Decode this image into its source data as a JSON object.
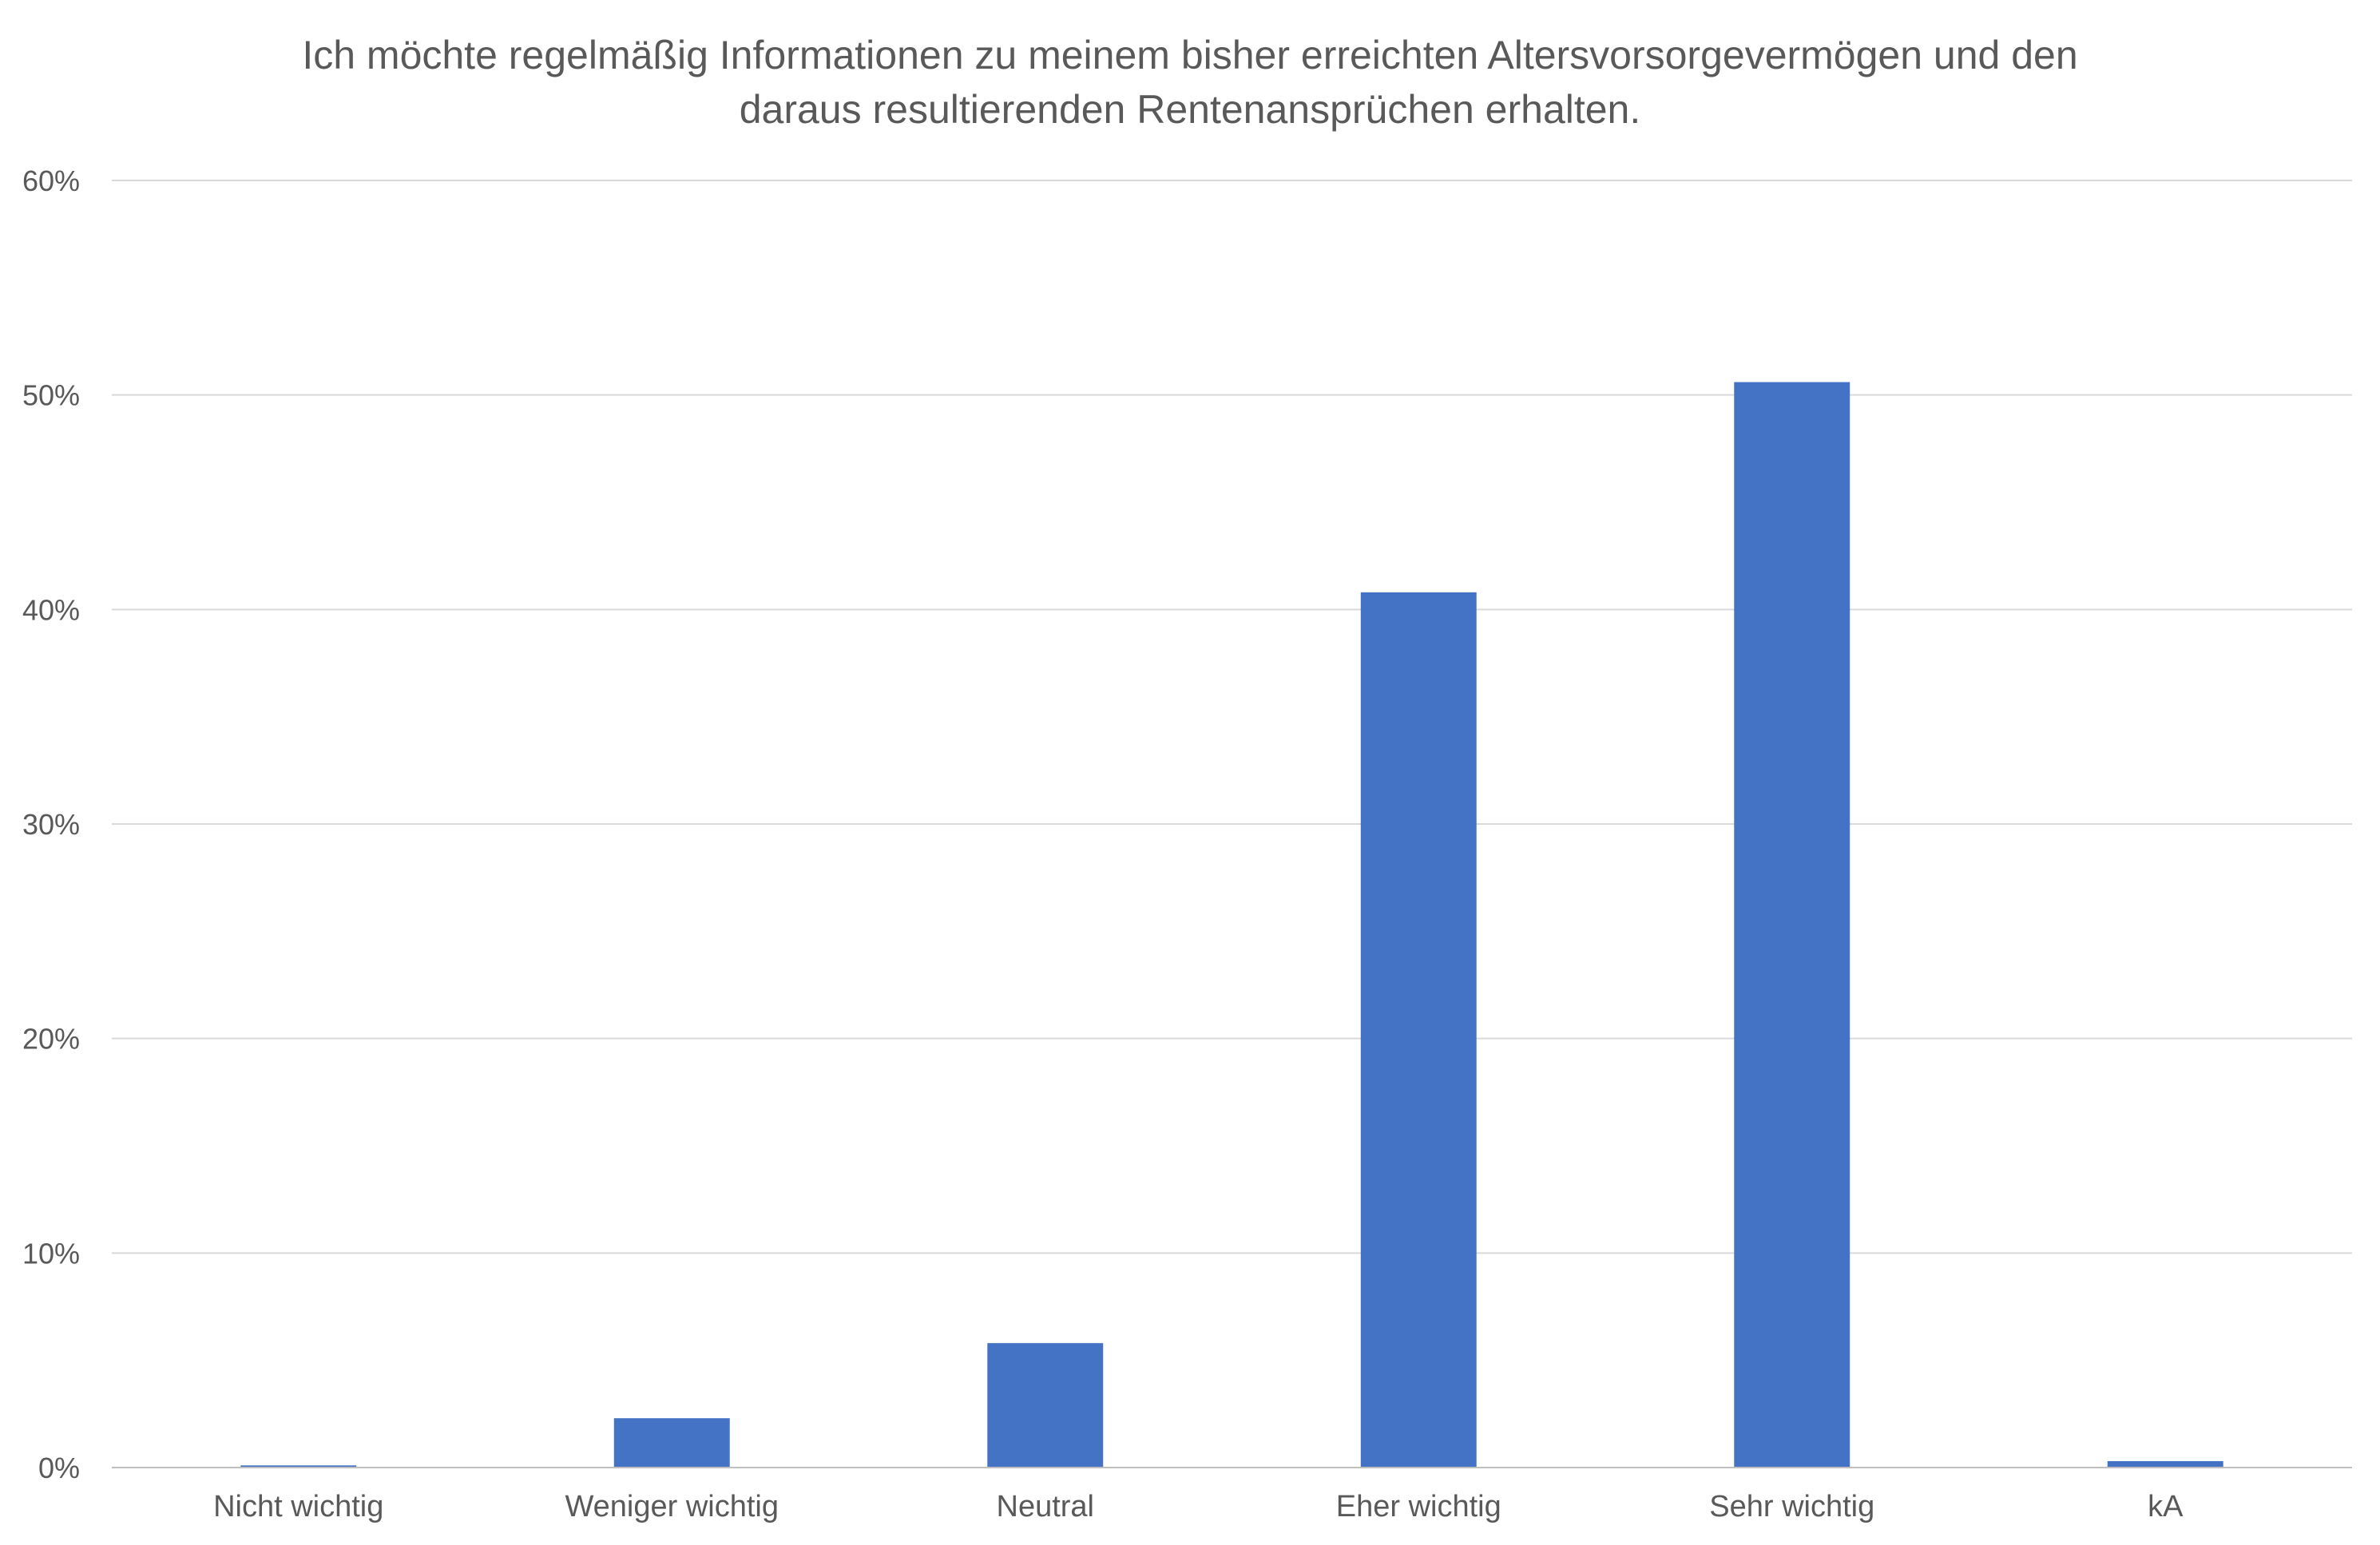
{
  "chart_data": {
    "type": "bar",
    "title_lines": [
      "Ich möchte regelmäßig Informationen zu meinem bisher erreichten Altersvorsorgevermögen und den",
      "daraus resultierenden Rentenansprüchen erhalten."
    ],
    "categories": [
      "Nicht wichtig",
      "Weniger wichtig",
      "Neutral",
      "Eher wichtig",
      "Sehr wichtig",
      "kA"
    ],
    "values": [
      0.1,
      2.3,
      5.8,
      40.8,
      50.6,
      0.3
    ],
    "ylim": [
      0,
      60
    ],
    "yticks": [
      0,
      10,
      20,
      30,
      40,
      50,
      60
    ],
    "ytick_labels": [
      "0%",
      "10%",
      "20%",
      "30%",
      "40%",
      "50%",
      "60%"
    ],
    "xlabel": "",
    "ylabel": "",
    "grid": true,
    "legend": "none",
    "bar_color": "#4472c4"
  }
}
